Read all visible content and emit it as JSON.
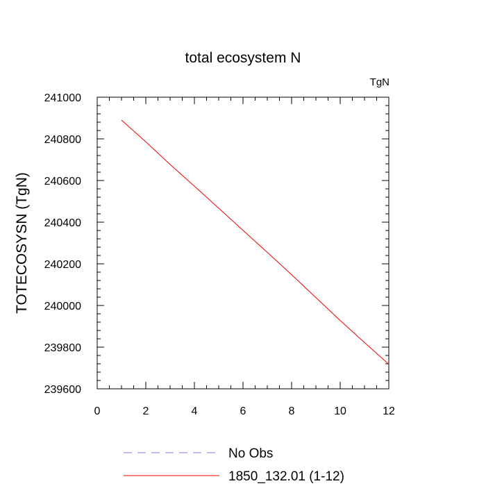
{
  "chart_data": {
    "type": "line",
    "title": "total ecosystem N",
    "units_label": "TgN",
    "ylabel": "TOTECOSYSN  (TgN)",
    "xlabel": "",
    "xlim": [
      0,
      12
    ],
    "ylim": [
      239600,
      241000
    ],
    "x_ticks": [
      0,
      2,
      4,
      6,
      8,
      10,
      12
    ],
    "y_ticks": [
      239600,
      239800,
      240000,
      240200,
      240400,
      240600,
      240800,
      241000
    ],
    "x_minor_step": 0.5,
    "y_minor_step": 40,
    "grid": false,
    "legend_position": "bottom",
    "series": [
      {
        "name": "No Obs",
        "color": "#7777ee",
        "dash": "dashed",
        "x": [],
        "y": []
      },
      {
        "name": "1850_132.01 (1-12)",
        "color": "#ee0000",
        "dash": "solid",
        "x": [
          1,
          2,
          3,
          4,
          5,
          6,
          7,
          8,
          9,
          10,
          11,
          12
        ],
        "y": [
          240890,
          240786,
          240677,
          240573,
          240467,
          240361,
          240255,
          240148,
          240038,
          239928,
          239822,
          239718
        ]
      }
    ]
  }
}
